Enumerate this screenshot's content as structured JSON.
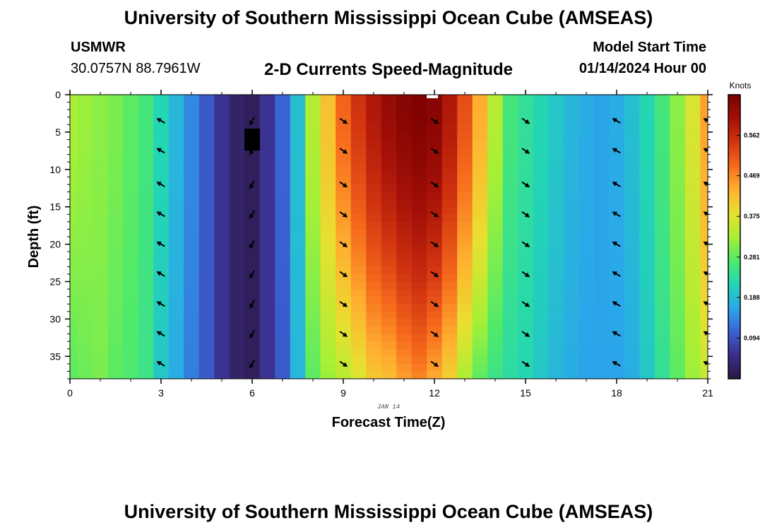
{
  "header": {
    "title": "University of Southern Mississippi Ocean Cube (AMSEAS)",
    "station": "USMWR",
    "coords": "30.0757N  88.7961W",
    "subtitle": "2-D Currents Speed-Magnitude",
    "model_label": "Model Start Time",
    "model_date": "01/14/2024 Hour 00"
  },
  "footer": {
    "title": "University of Southern Mississippi Ocean Cube (AMSEAS)"
  },
  "chart_data": {
    "type": "heatmap",
    "title": "2-D Currents Speed-Magnitude",
    "xlabel": "Forecast Time(Z)",
    "ylabel": "Depth (ft)",
    "date_label": "JAN 14",
    "xlim": [
      0,
      21
    ],
    "ylim": [
      38,
      0
    ],
    "x_ticks": [
      0,
      3,
      6,
      9,
      12,
      15,
      18,
      21
    ],
    "y_ticks": [
      0,
      5,
      10,
      15,
      20,
      25,
      30,
      35
    ],
    "colorbar": {
      "label": "Knots",
      "min": 0,
      "max": 0.656,
      "ticks": [
        0.094,
        0.188,
        0.281,
        0.375,
        0.469,
        0.562
      ],
      "colors": [
        "#2a1740",
        "#3a2e8a",
        "#3a63d6",
        "#2aa8ea",
        "#23d6b4",
        "#50ea6a",
        "#a8f034",
        "#e8e030",
        "#ffb030",
        "#f66a1c",
        "#d23410",
        "#a41008",
        "#7a0000"
      ]
    },
    "hours": [
      0,
      0.5,
      1,
      1.5,
      2,
      2.5,
      3,
      3.5,
      4,
      4.5,
      5,
      5.5,
      6,
      6.5,
      7,
      7.5,
      8,
      8.5,
      9,
      9.5,
      10,
      10.5,
      11,
      11.5,
      12,
      12.5,
      13,
      13.5,
      14,
      14.5,
      15,
      15.5,
      16,
      16.5,
      17,
      17.5,
      18,
      18.5,
      19,
      19.5,
      20,
      20.5,
      21
    ],
    "surface_speed": [
      0.33,
      0.32,
      0.31,
      0.3,
      0.28,
      0.26,
      0.22,
      0.18,
      0.14,
      0.1,
      0.06,
      0.03,
      0.02,
      0.06,
      0.11,
      0.19,
      0.34,
      0.42,
      0.5,
      0.55,
      0.59,
      0.62,
      0.64,
      0.65,
      0.64,
      0.59,
      0.52,
      0.44,
      0.34,
      0.26,
      0.24,
      0.22,
      0.2,
      0.18,
      0.17,
      0.16,
      0.17,
      0.19,
      0.22,
      0.26,
      0.31,
      0.37,
      0.45
    ],
    "bottom_speed": [
      0.28,
      0.29,
      0.3,
      0.28,
      0.27,
      0.25,
      0.2,
      0.17,
      0.13,
      0.1,
      0.06,
      0.03,
      0.02,
      0.06,
      0.1,
      0.18,
      0.28,
      0.32,
      0.34,
      0.37,
      0.41,
      0.42,
      0.45,
      0.47,
      0.44,
      0.4,
      0.33,
      0.28,
      0.25,
      0.23,
      0.22,
      0.2,
      0.18,
      0.17,
      0.16,
      0.16,
      0.16,
      0.17,
      0.2,
      0.24,
      0.28,
      0.32,
      0.35
    ],
    "vectors": {
      "hours": [
        3,
        6,
        9,
        12,
        15,
        18,
        21
      ],
      "depths": [
        3.5,
        7.5,
        12,
        16,
        20,
        24,
        28,
        32,
        36
      ],
      "angles_deg": [
        -150,
        120,
        35,
        35,
        35,
        -150,
        -150
      ]
    }
  }
}
